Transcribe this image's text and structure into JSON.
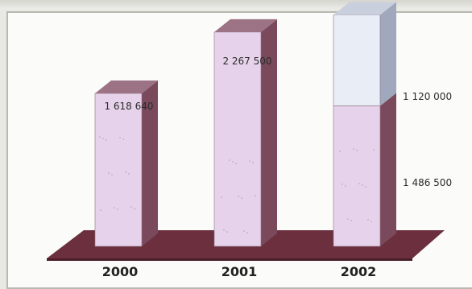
{
  "chart_data": {
    "type": "bar",
    "stacked": true,
    "categories": [
      "2000",
      "2001",
      "2002"
    ],
    "series": [
      {
        "values": [
          1618640,
          2267500,
          1486500
        ]
      },
      {
        "values": [
          0,
          0,
          1120000
        ]
      }
    ],
    "data_labels": [
      {
        "category": "2000",
        "text": "1 618 640"
      },
      {
        "category": "2001",
        "text": "2 267 500"
      },
      {
        "category": "2002",
        "text": "1 120 000"
      },
      {
        "category": "2002",
        "text": "1 486 500"
      }
    ],
    "title": "",
    "xlabel": "",
    "ylabel": "",
    "ylim": [
      0,
      2700000
    ],
    "legend": "none",
    "grid": false
  },
  "colors": {
    "bar_front": "#e6d2ea",
    "bar_side": "#7a4a5c",
    "bar_top": "#9c7385",
    "upper_front": "#e8edf6",
    "upper_side": "#9fa8bd",
    "upper_top": "#c9cfdd",
    "floor": "#6b2f3e",
    "floor_edge": "#4a1e2a",
    "label_text": "#2b2b2b",
    "background": "#fbfbf9"
  }
}
